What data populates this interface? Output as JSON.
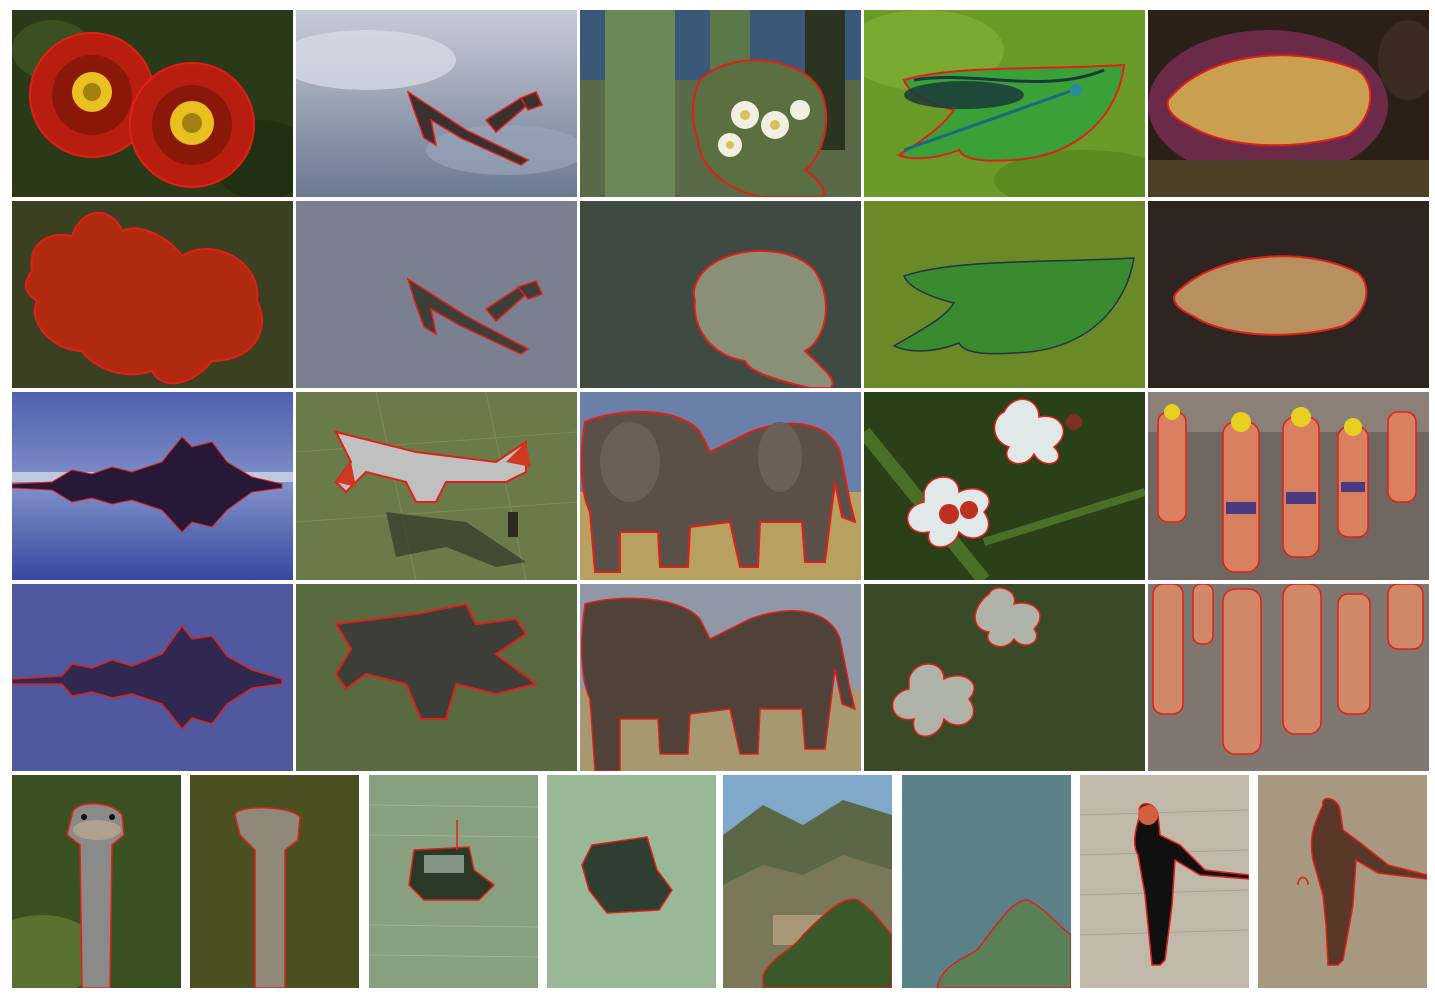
{
  "figure": {
    "background": "#ffffff",
    "boundary_color": "#e02018",
    "rows": [
      {
        "kind": "original-images",
        "tiles": [
          {
            "subject": "red-flowers",
            "palette": [
              "#2a3a18",
              "#b81e10",
              "#e8c020"
            ]
          },
          {
            "subject": "airplane-in-sky",
            "palette": [
              "#b8c0d0",
              "#5a6070",
              "#3a3030"
            ]
          },
          {
            "subject": "cactus-flowers",
            "palette": [
              "#4a5038",
              "#6a7a58",
              "#f0f0e0"
            ]
          },
          {
            "subject": "dragonfly-on-leaf",
            "palette": [
              "#6a9a28",
              "#3aa038",
              "#1a3a38"
            ]
          },
          {
            "subject": "grain-basket",
            "palette": [
              "#2a2018",
              "#c8a050",
              "#6a2a48"
            ]
          }
        ]
      },
      {
        "kind": "segmentation-masks",
        "tiles": [
          {
            "subject": "red-flowers-mask",
            "palette": [
              "#3a4020",
              "#b02a10"
            ]
          },
          {
            "subject": "airplane-mask",
            "palette": [
              "#7a8090",
              "#3e3e38"
            ]
          },
          {
            "subject": "cactus-flowers-mask",
            "palette": [
              "#3e4a42",
              "#8a9078"
            ]
          },
          {
            "subject": "dragonfly-leaf-mask",
            "palette": [
              "#6a8a28",
              "#3a8a30"
            ]
          },
          {
            "subject": "grain-basket-mask",
            "palette": [
              "#2e2420",
              "#b89060"
            ]
          }
        ]
      },
      {
        "kind": "original-images",
        "tiles": [
          {
            "subject": "rock-island-reflection",
            "palette": [
              "#4050a0",
              "#281838",
              "#c0c8e0"
            ]
          },
          {
            "subject": "jet-on-tarmac",
            "palette": [
              "#6a7a48",
              "#c0c0c0",
              "#d03820"
            ]
          },
          {
            "subject": "elephants",
            "palette": [
              "#5a5048",
              "#b8a060",
              "#6a80a8"
            ]
          },
          {
            "subject": "white-flowers-ladybugs",
            "palette": [
              "#2a4018",
              "#e0e8e8",
              "#c03020"
            ]
          },
          {
            "subject": "swimmers",
            "palette": [
              "#706860",
              "#d88060",
              "#e8d020"
            ]
          }
        ]
      },
      {
        "kind": "segmentation-masks",
        "tiles": [
          {
            "subject": "rock-island-mask",
            "palette": [
              "#5058a0",
              "#302850"
            ]
          },
          {
            "subject": "jet-mask",
            "palette": [
              "#5a6a40",
              "#3e3e38"
            ]
          },
          {
            "subject": "elephants-mask",
            "palette": [
              "#9098a8",
              "#a89870",
              "#504238"
            ]
          },
          {
            "subject": "white-flowers-mask",
            "palette": [
              "#3a4a28",
              "#b0b4a8"
            ]
          },
          {
            "subject": "swimmers-mask",
            "palette": [
              "#807870",
              "#d08868"
            ]
          }
        ]
      },
      {
        "kind": "mixed-pairs",
        "tiles": [
          {
            "subject": "ostrich",
            "palette": [
              "#3a5020",
              "#8a8a88",
              "#b0a090"
            ]
          },
          {
            "subject": "ostrich-mask",
            "palette": [
              "#4a5020",
              "#908878"
            ]
          },
          {
            "subject": "boat-on-water",
            "palette": [
              "#88a080",
              "#2a3828",
              "#c0d0c0"
            ]
          },
          {
            "subject": "boat-mask",
            "palette": [
              "#98b898",
              "#2e3e30"
            ]
          },
          {
            "subject": "mountain-fortress",
            "palette": [
              "#80a8c8",
              "#5a6848",
              "#3a5828"
            ]
          },
          {
            "subject": "mountain-mask",
            "palette": [
              "#5a8088",
              "#5a8058"
            ]
          },
          {
            "subject": "woman-on-stairs",
            "palette": [
              "#c0b8a8",
              "#101010",
              "#d06040"
            ]
          },
          {
            "subject": "woman-mask",
            "palette": [
              "#a89880",
              "#5a3828"
            ]
          }
        ]
      }
    ]
  }
}
